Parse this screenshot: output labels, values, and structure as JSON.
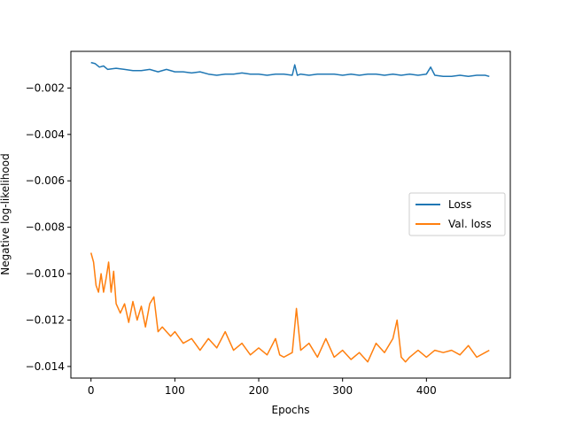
{
  "chart_data": {
    "type": "line",
    "title": "",
    "xlabel": "Epochs",
    "ylabel": "Negative log-likelihood",
    "xlim": [
      -24,
      500
    ],
    "ylim": [
      -0.0145,
      -0.00042
    ],
    "xticks": [
      0,
      100,
      200,
      300,
      400
    ],
    "yticks": [
      -0.014,
      -0.012,
      -0.01,
      -0.008,
      -0.006,
      -0.004,
      -0.002
    ],
    "ytick_labels": [
      "−0.014",
      "−0.012",
      "−0.010",
      "−0.008",
      "−0.006",
      "−0.004",
      "−0.002"
    ],
    "grid": false,
    "legend": {
      "position": "center-right"
    },
    "series": [
      {
        "name": "Loss",
        "color": "#1f77b4",
        "x": [
          0,
          5,
          10,
          15,
          20,
          30,
          40,
          50,
          60,
          70,
          80,
          90,
          100,
          110,
          120,
          130,
          140,
          150,
          160,
          170,
          180,
          190,
          200,
          210,
          220,
          230,
          240,
          243,
          246,
          250,
          260,
          270,
          280,
          290,
          300,
          310,
          320,
          330,
          340,
          350,
          360,
          370,
          380,
          390,
          400,
          405,
          410,
          420,
          430,
          440,
          450,
          460,
          470,
          475
        ],
        "y": [
          -0.0009,
          -0.00095,
          -0.0011,
          -0.00105,
          -0.0012,
          -0.00115,
          -0.0012,
          -0.00125,
          -0.00125,
          -0.0012,
          -0.0013,
          -0.0012,
          -0.0013,
          -0.0013,
          -0.00135,
          -0.0013,
          -0.0014,
          -0.00145,
          -0.0014,
          -0.0014,
          -0.00135,
          -0.0014,
          -0.0014,
          -0.00145,
          -0.0014,
          -0.0014,
          -0.00145,
          -0.001,
          -0.00145,
          -0.0014,
          -0.00145,
          -0.0014,
          -0.0014,
          -0.0014,
          -0.00145,
          -0.0014,
          -0.00145,
          -0.0014,
          -0.0014,
          -0.00145,
          -0.0014,
          -0.00145,
          -0.0014,
          -0.00145,
          -0.0014,
          -0.0011,
          -0.00145,
          -0.0015,
          -0.0015,
          -0.00145,
          -0.0015,
          -0.00145,
          -0.00145,
          -0.0015
        ]
      },
      {
        "name": "Val. loss",
        "color": "#ff7f0e",
        "x": [
          0,
          3,
          6,
          9,
          12,
          15,
          18,
          21,
          24,
          27,
          30,
          35,
          40,
          45,
          50,
          55,
          60,
          65,
          70,
          75,
          80,
          85,
          90,
          95,
          100,
          110,
          120,
          130,
          140,
          150,
          160,
          170,
          180,
          190,
          200,
          210,
          220,
          225,
          230,
          240,
          245,
          250,
          260,
          270,
          280,
          290,
          300,
          310,
          320,
          330,
          340,
          350,
          360,
          365,
          370,
          375,
          380,
          390,
          400,
          410,
          420,
          430,
          440,
          450,
          460,
          470,
          475
        ],
        "y": [
          -0.0091,
          -0.0095,
          -0.0105,
          -0.0108,
          -0.01,
          -0.0108,
          -0.0102,
          -0.0095,
          -0.0108,
          -0.0099,
          -0.0113,
          -0.0117,
          -0.0113,
          -0.0121,
          -0.0112,
          -0.012,
          -0.0114,
          -0.0123,
          -0.0113,
          -0.011,
          -0.0125,
          -0.0123,
          -0.0125,
          -0.0127,
          -0.0125,
          -0.013,
          -0.0128,
          -0.0133,
          -0.0128,
          -0.0132,
          -0.0125,
          -0.0133,
          -0.013,
          -0.0135,
          -0.0132,
          -0.0135,
          -0.0128,
          -0.0135,
          -0.0136,
          -0.0134,
          -0.0115,
          -0.0133,
          -0.013,
          -0.0136,
          -0.0128,
          -0.0136,
          -0.0133,
          -0.0137,
          -0.0134,
          -0.0138,
          -0.013,
          -0.0134,
          -0.0128,
          -0.012,
          -0.0136,
          -0.0138,
          -0.0136,
          -0.0133,
          -0.0136,
          -0.0133,
          -0.0134,
          -0.0133,
          -0.0135,
          -0.0131,
          -0.0136,
          -0.0134,
          -0.0133
        ]
      }
    ]
  }
}
